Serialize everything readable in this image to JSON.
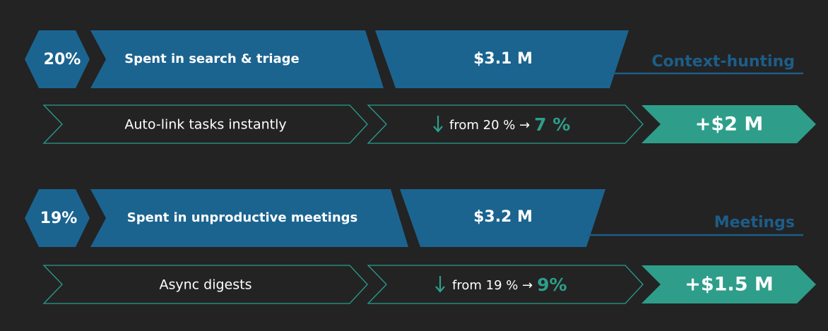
{
  "blocks": [
    {
      "share": "20%",
      "problem": "Spent in search & triage",
      "cost": "$3.1 M",
      "category": "Context-hunting",
      "action": "Auto-link tasks instantly",
      "change": "from 20 % →",
      "target": "7 %",
      "saving": "+$2 M"
    },
    {
      "share": "19%",
      "problem": "Spent in unproductive meetings",
      "cost": "$3.2 M",
      "category": "Meetings",
      "action": "Async digests",
      "change": "from 19 % →",
      "target": "9%",
      "saving": "+$1.5 M"
    }
  ]
}
